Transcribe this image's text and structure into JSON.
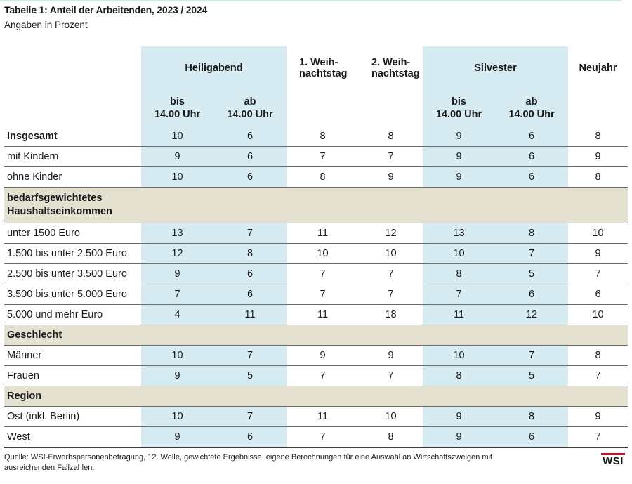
{
  "title": "Tabelle 1: Anteil der Arbeitenden, 2023 / 2024",
  "subtitle": "Angaben in Prozent",
  "columns": {
    "heiligabend": "Heiligabend",
    "weihnachtstag1_line1": "1. Weih-",
    "weihnachtstag1_line2": "nachtstag",
    "weihnachtstag2_line1": "2. Weih-",
    "weihnachtstag2_line2": "nachtstag",
    "silvester": "Silvester",
    "neujahr": "Neujahr",
    "bis_line1": "bis",
    "bis_line2": "14.00 Uhr",
    "ab_line1": "ab",
    "ab_line2": "14.00 Uhr"
  },
  "rows": [
    {
      "label": "Insgesamt",
      "values": [
        "10",
        "6",
        "8",
        "8",
        "9",
        "6",
        "8"
      ]
    },
    {
      "label": "mit Kindern",
      "values": [
        "9",
        "6",
        "7",
        "7",
        "9",
        "6",
        "9"
      ]
    },
    {
      "label": "ohne Kinder",
      "values": [
        "10",
        "6",
        "8",
        "9",
        "9",
        "6",
        "8"
      ]
    },
    {
      "label": "unter 1500 Euro",
      "values": [
        "13",
        "7",
        "11",
        "12",
        "13",
        "8",
        "10"
      ]
    },
    {
      "label": "1.500 bis unter 2.500 Euro",
      "values": [
        "12",
        "8",
        "10",
        "10",
        "10",
        "7",
        "9"
      ]
    },
    {
      "label": "2.500 bis unter 3.500 Euro",
      "values": [
        "9",
        "6",
        "7",
        "7",
        "8",
        "5",
        "7"
      ]
    },
    {
      "label": "3.500 bis unter 5.000 Euro",
      "values": [
        "7",
        "6",
        "7",
        "7",
        "7",
        "6",
        "6"
      ]
    },
    {
      "label": "5.000 und mehr Euro",
      "values": [
        "4",
        "11",
        "11",
        "18",
        "11",
        "12",
        "10"
      ]
    },
    {
      "label": "Männer",
      "values": [
        "10",
        "7",
        "9",
        "9",
        "10",
        "7",
        "8"
      ]
    },
    {
      "label": "Frauen",
      "values": [
        "9",
        "5",
        "7",
        "7",
        "8",
        "5",
        "7"
      ]
    },
    {
      "label": "Ost (inkl. Berlin)",
      "values": [
        "10",
        "7",
        "11",
        "10",
        "9",
        "8",
        "9"
      ]
    },
    {
      "label": "West",
      "values": [
        "9",
        "6",
        "7",
        "8",
        "9",
        "6",
        "7"
      ]
    }
  ],
  "sections": {
    "einkommen_line1": "bedarfsgewichtetes",
    "einkommen_line2": "Haushaltseinkommen",
    "geschlecht": "Geschlecht",
    "region": "Region"
  },
  "source_line1": "Quelle: WSI-Erwerbspersonenbefragung, 12. Welle, gewichtete Ergebnisse, eigene Berechnungen für eine Auswahl an Wirtschaftszweigen mit",
  "source_line2": "ausreichenden Fallzahlen.",
  "logo_text": "WSI"
}
